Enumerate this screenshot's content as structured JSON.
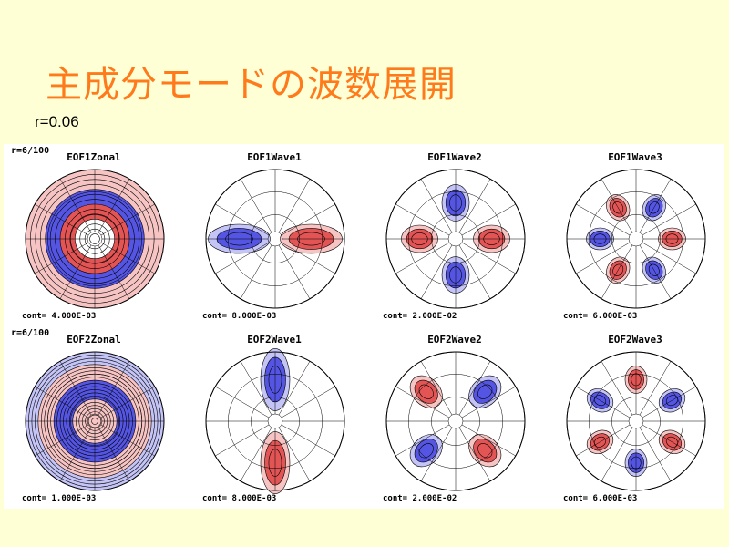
{
  "slide": {
    "title": "主成分モードの波数展開",
    "r_value": "r=0.06"
  },
  "figure": {
    "rows": [
      {
        "row_label": "r=6/100",
        "panels": [
          {
            "title": "EOF1Zonal",
            "cont": "cont= 4.000E-03",
            "kind": "zonal",
            "wavenumber": 0,
            "mode": 1
          },
          {
            "title": "EOF1Wave1",
            "cont": "cont= 8.000E-03",
            "kind": "wave",
            "wavenumber": 1,
            "mode": 1
          },
          {
            "title": "EOF1Wave2",
            "cont": "cont= 2.000E-02",
            "kind": "wave",
            "wavenumber": 2,
            "mode": 1
          },
          {
            "title": "EOF1Wave3",
            "cont": "cont= 6.000E-03",
            "kind": "wave",
            "wavenumber": 3,
            "mode": 1
          }
        ]
      },
      {
        "row_label": "r=6/100",
        "panels": [
          {
            "title": "EOF2Zonal",
            "cont": "cont= 1.000E-03",
            "kind": "zonal",
            "wavenumber": 0,
            "mode": 2
          },
          {
            "title": "EOF2Wave1",
            "cont": "cont= 8.000E-03",
            "kind": "wave",
            "wavenumber": 1,
            "mode": 2
          },
          {
            "title": "EOF2Wave2",
            "cont": "cont= 2.000E-02",
            "kind": "wave",
            "wavenumber": 2,
            "mode": 2
          },
          {
            "title": "EOF2Wave3",
            "cont": "cont= 6.000E-03",
            "kind": "wave",
            "wavenumber": 3,
            "mode": 2
          }
        ]
      }
    ],
    "colors": {
      "positive": "#e35555",
      "positive_light": "#f7c4c4",
      "negative": "#5555e3",
      "negative_light": "#c4c4f7"
    }
  }
}
